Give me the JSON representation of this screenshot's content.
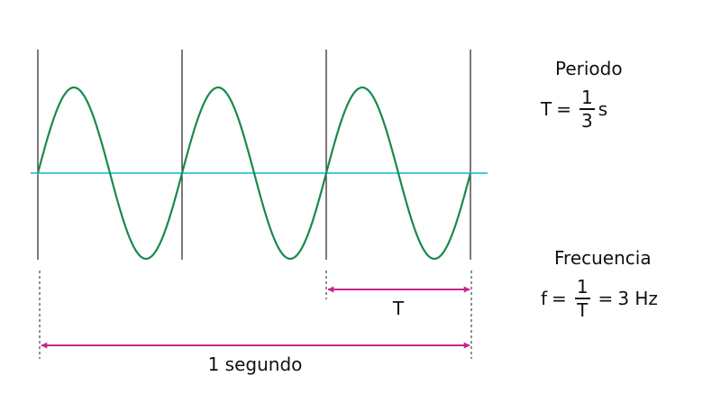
{
  "colors": {
    "wave": "#188a4a",
    "axis": "#4cc6e3",
    "arrow": "#c8238e",
    "marker": "#222222"
  },
  "waveform": {
    "cycles": 3,
    "shape": "sine"
  },
  "labels": {
    "period_arrow": "T",
    "second_arrow": "1 segundo"
  },
  "period": {
    "title": "Periodo",
    "var": "T",
    "eq": "=",
    "num": "1",
    "den": "3",
    "unit": "s"
  },
  "frequency": {
    "title": "Frecuencia",
    "var": "f",
    "eq": "=",
    "num": "1",
    "den": "T",
    "eq2": "=",
    "result": "3 Hz"
  }
}
